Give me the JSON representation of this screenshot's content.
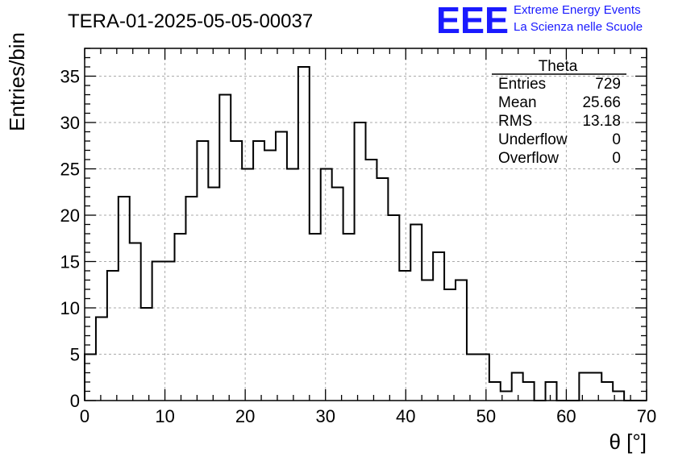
{
  "chart_data": {
    "type": "histogram",
    "title": "TERA-01-2025-05-05-00037",
    "xlabel": "θ [°]",
    "ylabel": "Entries/bin",
    "xlim": [
      0,
      70
    ],
    "ylim": [
      0,
      38
    ],
    "bin_width": 1.4,
    "x_ticks": [
      0,
      10,
      20,
      30,
      40,
      50,
      60,
      70
    ],
    "y_ticks": [
      0,
      5,
      10,
      15,
      20,
      25,
      30,
      35
    ],
    "grid": true,
    "series": [
      {
        "values": [
          5,
          9,
          14,
          22,
          17,
          10,
          15,
          15,
          18,
          22,
          28,
          23,
          33,
          28,
          25,
          28,
          27,
          29,
          25,
          36,
          18,
          25,
          23,
          18,
          30,
          26,
          24,
          20,
          14,
          19,
          13,
          16,
          12,
          13,
          5,
          5,
          2,
          1,
          3,
          2,
          0,
          2,
          0,
          0,
          3,
          3,
          2,
          1,
          0,
          0
        ]
      }
    ],
    "stats_box": {
      "title": "Theta",
      "rows": [
        {
          "label": "Entries",
          "value": "729"
        },
        {
          "label": "Mean",
          "value": "25.66"
        },
        {
          "label": "RMS",
          "value": "13.18"
        },
        {
          "label": "Underflow",
          "value": "0"
        },
        {
          "label": "Overflow",
          "value": "0"
        }
      ]
    }
  },
  "logo": {
    "letters": "EEE",
    "line1": "Extreme Energy Events",
    "line2": "La Scienza nelle Scuole",
    "color": "#1a1aff"
  },
  "colors": {
    "line": "#000000",
    "grid": "#aaaaaa",
    "background": "#ffffff"
  }
}
